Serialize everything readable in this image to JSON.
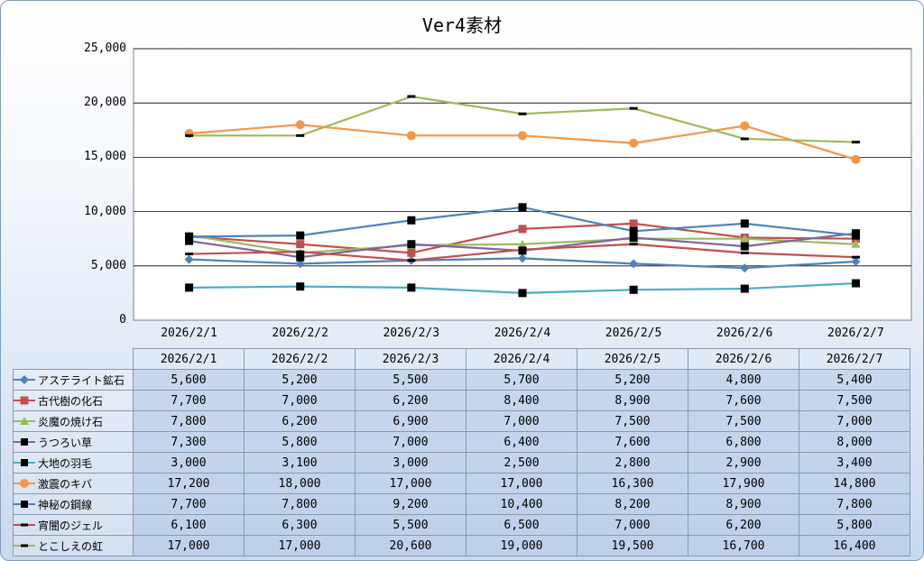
{
  "chart_data": {
    "type": "line",
    "title": "Ver4素材",
    "x": [
      "2026/2/1",
      "2026/2/2",
      "2026/2/3",
      "2026/2/4",
      "2026/2/5",
      "2026/2/6",
      "2026/2/7"
    ],
    "ylim": [
      0,
      25000
    ],
    "yticks": [
      "0",
      "5,000",
      "10,000",
      "15,000",
      "20,000",
      "25,000"
    ],
    "ytick_values": [
      0,
      5000,
      10000,
      15000,
      20000,
      25000
    ],
    "grid": true,
    "legend": "data-table",
    "series": [
      {
        "name": "アステライト鉱石",
        "color": "#4f81bd",
        "marker": "diamond",
        "values": [
          5600,
          5200,
          5500,
          5700,
          5200,
          4800,
          5400
        ],
        "labels": [
          "5,600",
          "5,200",
          "5,500",
          "5,700",
          "5,200",
          "4,800",
          "5,400"
        ]
      },
      {
        "name": "古代樹の化石",
        "color": "#c0504d",
        "marker": "square",
        "values": [
          7700,
          7000,
          6200,
          8400,
          8900,
          7600,
          7500
        ],
        "labels": [
          "7,700",
          "7,000",
          "6,200",
          "8,400",
          "8,900",
          "7,600",
          "7,500"
        ]
      },
      {
        "name": "炎魔の焼け石",
        "color": "#9bbb59",
        "marker": "triangle",
        "values": [
          7800,
          6200,
          6900,
          7000,
          7500,
          7500,
          7000
        ],
        "labels": [
          "7,800",
          "6,200",
          "6,900",
          "7,000",
          "7,500",
          "7,500",
          "7,000"
        ]
      },
      {
        "name": "うつろい草",
        "color": "#8064a2",
        "marker": "square-black",
        "values": [
          7300,
          5800,
          7000,
          6400,
          7600,
          6800,
          8000
        ],
        "labels": [
          "7,300",
          "5,800",
          "7,000",
          "6,400",
          "7,600",
          "6,800",
          "8,000"
        ]
      },
      {
        "name": "大地の羽毛",
        "color": "#4bacc6",
        "marker": "square-black",
        "values": [
          3000,
          3100,
          3000,
          2500,
          2800,
          2900,
          3400
        ],
        "labels": [
          "3,000",
          "3,100",
          "3,000",
          "2,500",
          "2,800",
          "2,900",
          "3,400"
        ]
      },
      {
        "name": "激震のキバ",
        "color": "#f79646",
        "marker": "circle",
        "values": [
          17200,
          18000,
          17000,
          17000,
          16300,
          17900,
          14800
        ],
        "labels": [
          "17,200",
          "18,000",
          "17,000",
          "17,000",
          "16,300",
          "17,900",
          "14,800"
        ]
      },
      {
        "name": "神秘の鋼線",
        "color": "#4f81bd",
        "marker": "square-black",
        "values": [
          7700,
          7800,
          9200,
          10400,
          8200,
          8900,
          7800
        ],
        "labels": [
          "7,700",
          "7,800",
          "9,200",
          "10,400",
          "8,200",
          "8,900",
          "7,800"
        ]
      },
      {
        "name": "宵闇のジェル",
        "color": "#c0504d",
        "marker": "dash",
        "values": [
          6100,
          6300,
          5500,
          6500,
          7000,
          6200,
          5800
        ],
        "labels": [
          "6,100",
          "6,300",
          "5,500",
          "6,500",
          "7,000",
          "6,200",
          "5,800"
        ]
      },
      {
        "name": "とこしえの虹",
        "color": "#9bbb59",
        "marker": "dash",
        "values": [
          17000,
          17000,
          20600,
          19000,
          19500,
          16700,
          16400
        ],
        "labels": [
          "17,000",
          "17,000",
          "20,600",
          "19,000",
          "19,500",
          "16,700",
          "16,400"
        ]
      }
    ]
  }
}
